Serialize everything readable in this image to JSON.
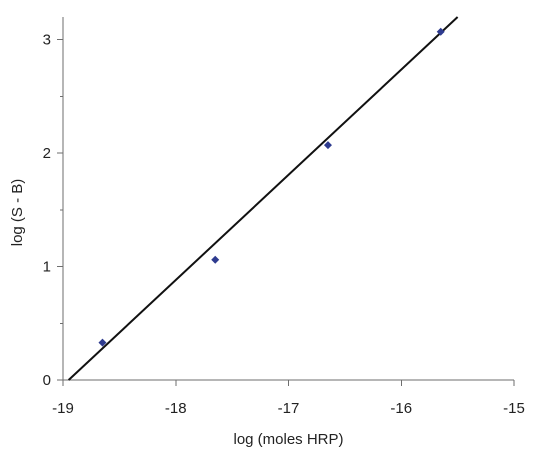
{
  "chart_data": {
    "type": "scatter",
    "title": "",
    "xlabel": "log (moles HRP)",
    "ylabel": "log (S - B)",
    "xlim": [
      -19,
      -15
    ],
    "ylim": [
      0,
      3.2
    ],
    "x_ticks": [
      -19,
      -18,
      -17,
      -16,
      -15
    ],
    "y_ticks": [
      0,
      1,
      2,
      3
    ],
    "x_tick_labels": [
      "-19",
      "-18",
      "-17",
      "-16",
      "-15"
    ],
    "y_tick_labels": [
      "0",
      "1",
      "2",
      "3"
    ],
    "grid": false,
    "legend": "none",
    "series": [
      {
        "marker": "diamond",
        "color": "#2e3b8f",
        "points": [
          {
            "x": -18.65,
            "y": 0.33
          },
          {
            "x": -17.65,
            "y": 1.06
          },
          {
            "x": -16.65,
            "y": 2.07
          },
          {
            "x": -15.65,
            "y": 3.07
          }
        ]
      }
    ],
    "fit_line": {
      "color": "#111111",
      "points": [
        {
          "x": -18.95,
          "y": 0.0
        },
        {
          "x": -15.5,
          "y": 3.2
        }
      ]
    }
  }
}
